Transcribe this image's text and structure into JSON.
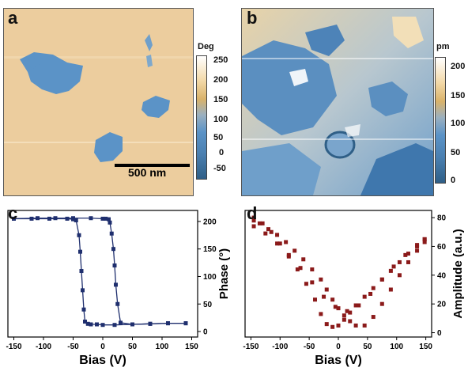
{
  "panels": {
    "a": {
      "label": "a",
      "colorbar": {
        "title": "Deg",
        "ticks": [
          "250",
          "200",
          "150",
          "100",
          "50",
          "0",
          "-50"
        ]
      },
      "scalebar": "500 nm"
    },
    "b": {
      "label": "b",
      "colorbar": {
        "title": "pm",
        "ticks": [
          "200",
          "150",
          "100",
          "50",
          "0"
        ]
      }
    },
    "c": {
      "label": "c"
    },
    "d": {
      "label": "d"
    }
  },
  "colors": {
    "tan": "#eccd9e",
    "blue": "#5b93c7",
    "darkblue": "#2f5f87",
    "phase_marker": "#1f2f6e",
    "amp_marker": "#8b1a1a"
  },
  "chart_data": [
    {
      "type": "line",
      "panel": "c",
      "xlabel": "Bias (V)",
      "ylabel": "Phase (°)",
      "xlim": [
        -160,
        160
      ],
      "ylim": [
        -10,
        220
      ],
      "xticks": [
        -150,
        -100,
        -50,
        0,
        50,
        100,
        150
      ],
      "yticks": [
        0,
        50,
        100,
        150,
        200
      ],
      "y_axis_side": "right",
      "series": [
        {
          "x": [
            -150,
            -120,
            -90,
            -60,
            -50,
            -45,
            -40,
            -38,
            -36,
            -34,
            -32,
            -30,
            -25,
            -20,
            -10,
            0,
            20,
            50,
            80,
            110,
            140
          ],
          "y": [
            205,
            205,
            205,
            205,
            204,
            202,
            175,
            145,
            110,
            75,
            40,
            18,
            14,
            13,
            13,
            12,
            12,
            13,
            14,
            15,
            15
          ]
        },
        {
          "x": [
            140,
            110,
            80,
            50,
            30,
            25,
            22,
            20,
            18,
            15,
            12,
            10,
            5,
            0,
            -20,
            -50,
            -80,
            -110,
            -150
          ],
          "y": [
            15,
            15,
            14,
            13,
            16,
            50,
            85,
            120,
            150,
            178,
            198,
            204,
            205,
            205,
            206,
            206,
            206,
            206,
            205
          ]
        }
      ]
    },
    {
      "type": "scatter",
      "panel": "d",
      "xlabel": "Bias (V)",
      "ylabel": "Amplitude (a.u.)",
      "xlim": [
        -160,
        160
      ],
      "ylim": [
        -3,
        85
      ],
      "xticks": [
        -150,
        -100,
        -50,
        0,
        50,
        100,
        150
      ],
      "yticks": [
        0,
        20,
        40,
        60,
        80
      ],
      "y_axis_side": "right",
      "series": [
        {
          "x": [
            -145,
            -130,
            -115,
            -100,
            -85,
            -70,
            -55,
            -40,
            -30,
            -20,
            -10,
            0,
            10,
            20,
            30,
            45,
            60,
            75,
            90,
            105,
            120,
            135,
            148
          ],
          "y": [
            80,
            76,
            70,
            62,
            53,
            44,
            34,
            23,
            13,
            6,
            4,
            5,
            9,
            14,
            19,
            25,
            31,
            37,
            43,
            49,
            55,
            60,
            65
          ]
        },
        {
          "x": [
            148,
            135,
            120,
            105,
            90,
            75,
            60,
            45,
            30,
            20,
            10,
            0,
            -10,
            -20,
            -30,
            -45,
            -60,
            -75,
            -90,
            -105,
            -120,
            -135,
            -145
          ],
          "y": [
            63,
            57,
            49,
            40,
            30,
            20,
            11,
            5,
            5,
            8,
            12,
            17,
            23,
            30,
            37,
            44,
            51,
            57,
            63,
            68,
            72,
            76,
            78
          ]
        },
        {
          "x": [
            -145,
            -125,
            -105,
            -85,
            -65,
            -45,
            -25,
            -5,
            15,
            35,
            55,
            75,
            95,
            115,
            135,
            148
          ],
          "y": [
            74,
            69,
            62,
            54,
            45,
            35,
            25,
            18,
            15,
            19,
            27,
            37,
            46,
            54,
            61,
            65
          ]
        }
      ]
    }
  ]
}
